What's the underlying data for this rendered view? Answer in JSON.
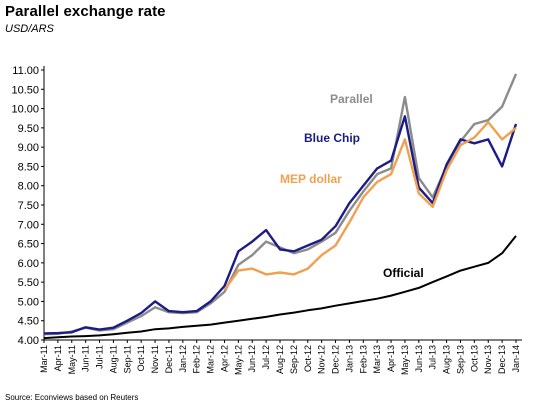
{
  "title": "Parallel exchange rate",
  "subtitle": "USD/ARS",
  "source": "Source: Econviews based on Reuters",
  "chart_data": {
    "type": "line",
    "title": "Parallel exchange rate",
    "ylabel": "USD/ARS",
    "xlabel": "",
    "ylim": [
      4.0,
      11.0
    ],
    "y_ticks": [
      "4.00",
      "4.50",
      "5.00",
      "5.50",
      "6.00",
      "6.50",
      "7.00",
      "7.50",
      "8.00",
      "8.50",
      "9.00",
      "9.50",
      "10.00",
      "10.50",
      "11.00"
    ],
    "x_categories": [
      "Mar-11",
      "Apr-11",
      "May-11",
      "Jun-11",
      "Jul-11",
      "Aug-11",
      "Sep-11",
      "Oct-11",
      "Nov-11",
      "Dec-11",
      "Jan-12",
      "Feb-12",
      "Mar-12",
      "Apr-12",
      "May-12",
      "Jun-12",
      "Jul-12",
      "Aug-12",
      "Sep-12",
      "Oct-12",
      "Nov-12",
      "Dec-12",
      "Jan-13",
      "Feb-13",
      "Mar-13",
      "Apr-13",
      "May-13",
      "Jun-13",
      "Jul-13",
      "Aug-13",
      "Sep-13",
      "Oct-13",
      "Nov-13",
      "Dec-13",
      "Jan-14"
    ],
    "grid": false,
    "legend": "inline labels",
    "series": [
      {
        "name": "Parallel",
        "color": "#8c8c8c",
        "points": [
          [
            0,
            4.15
          ],
          [
            1,
            4.16
          ],
          [
            2,
            4.22
          ],
          [
            3,
            4.32
          ],
          [
            4,
            4.25
          ],
          [
            5,
            4.28
          ],
          [
            6,
            4.45
          ],
          [
            7,
            4.62
          ],
          [
            8,
            4.85
          ],
          [
            9,
            4.72
          ],
          [
            10,
            4.7
          ],
          [
            11,
            4.72
          ],
          [
            12,
            4.95
          ],
          [
            13,
            5.25
          ],
          [
            14,
            5.95
          ],
          [
            15,
            6.2
          ],
          [
            16,
            6.55
          ],
          [
            17,
            6.4
          ],
          [
            18,
            6.25
          ],
          [
            19,
            6.35
          ],
          [
            20,
            6.55
          ],
          [
            21,
            6.78
          ],
          [
            22,
            7.35
          ],
          [
            23,
            7.85
          ],
          [
            24,
            8.3
          ],
          [
            25,
            8.45
          ],
          [
            26,
            10.3
          ],
          [
            27,
            8.2
          ],
          [
            28,
            7.7
          ],
          [
            29,
            8.5
          ],
          [
            30,
            9.15
          ],
          [
            31,
            9.6
          ],
          [
            32,
            9.7
          ],
          [
            33,
            10.05
          ],
          [
            34,
            10.9
          ]
        ]
      },
      {
        "name": "Blue Chip",
        "color": "#1c1c86",
        "points": [
          [
            0,
            4.17
          ],
          [
            1,
            4.18
          ],
          [
            2,
            4.2
          ],
          [
            3,
            4.33
          ],
          [
            4,
            4.27
          ],
          [
            5,
            4.32
          ],
          [
            6,
            4.5
          ],
          [
            7,
            4.7
          ],
          [
            8,
            5.0
          ],
          [
            9,
            4.75
          ],
          [
            10,
            4.72
          ],
          [
            11,
            4.75
          ],
          [
            12,
            5.0
          ],
          [
            13,
            5.4
          ],
          [
            14,
            6.3
          ],
          [
            15,
            6.55
          ],
          [
            16,
            6.85
          ],
          [
            17,
            6.35
          ],
          [
            18,
            6.3
          ],
          [
            19,
            6.45
          ],
          [
            20,
            6.6
          ],
          [
            21,
            6.95
          ],
          [
            22,
            7.55
          ],
          [
            23,
            8.0
          ],
          [
            24,
            8.45
          ],
          [
            25,
            8.65
          ],
          [
            26,
            9.8
          ],
          [
            27,
            7.95
          ],
          [
            28,
            7.55
          ],
          [
            29,
            8.55
          ],
          [
            30,
            9.2
          ],
          [
            31,
            9.1
          ],
          [
            32,
            9.2
          ],
          [
            33,
            8.5
          ],
          [
            34,
            9.6
          ]
        ]
      },
      {
        "name": "MEP dollar",
        "color": "#f0a050",
        "points": [
          [
            13,
            5.3
          ],
          [
            14,
            5.8
          ],
          [
            15,
            5.85
          ],
          [
            16,
            5.7
          ],
          [
            17,
            5.75
          ],
          [
            18,
            5.7
          ],
          [
            19,
            5.85
          ],
          [
            20,
            6.2
          ],
          [
            21,
            6.45
          ],
          [
            22,
            7.05
          ],
          [
            23,
            7.7
          ],
          [
            24,
            8.1
          ],
          [
            25,
            8.3
          ],
          [
            26,
            9.2
          ],
          [
            27,
            7.8
          ],
          [
            28,
            7.45
          ],
          [
            29,
            8.4
          ],
          [
            30,
            9.05
          ],
          [
            31,
            9.25
          ],
          [
            32,
            9.65
          ],
          [
            33,
            9.2
          ],
          [
            34,
            9.5
          ]
        ]
      },
      {
        "name": "Official",
        "color": "#000000",
        "points": [
          [
            0,
            4.05
          ],
          [
            1,
            4.07
          ],
          [
            2,
            4.09
          ],
          [
            3,
            4.1
          ],
          [
            4,
            4.12
          ],
          [
            5,
            4.15
          ],
          [
            6,
            4.19
          ],
          [
            7,
            4.22
          ],
          [
            8,
            4.28
          ],
          [
            9,
            4.3
          ],
          [
            10,
            4.34
          ],
          [
            11,
            4.37
          ],
          [
            12,
            4.4
          ],
          [
            13,
            4.45
          ],
          [
            14,
            4.5
          ],
          [
            15,
            4.55
          ],
          [
            16,
            4.6
          ],
          [
            17,
            4.66
          ],
          [
            18,
            4.71
          ],
          [
            19,
            4.77
          ],
          [
            20,
            4.82
          ],
          [
            21,
            4.89
          ],
          [
            22,
            4.95
          ],
          [
            23,
            5.01
          ],
          [
            24,
            5.07
          ],
          [
            25,
            5.15
          ],
          [
            26,
            5.25
          ],
          [
            27,
            5.35
          ],
          [
            28,
            5.5
          ],
          [
            29,
            5.65
          ],
          [
            30,
            5.8
          ],
          [
            31,
            5.9
          ],
          [
            32,
            6.0
          ],
          [
            33,
            6.25
          ],
          [
            34,
            6.7
          ]
        ]
      }
    ],
    "labels": {
      "parallel": "Parallel",
      "blue_chip": "Blue Chip",
      "mep": "MEP dollar",
      "official": "Official"
    }
  }
}
